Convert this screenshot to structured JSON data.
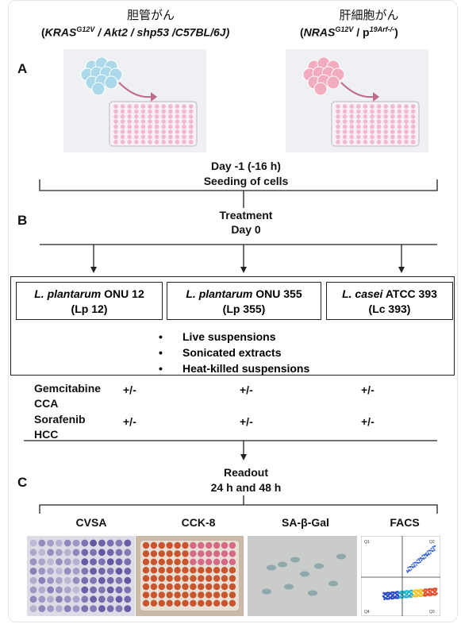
{
  "models": [
    {
      "title": "胆管がん",
      "genotype_pre": "(",
      "genotype_1": "KRAS",
      "genotype_1_sup": "G12V",
      "genotype_rest": " / Akt2 / shp53 /C57BL/6J)"
    },
    {
      "title": "肝細胞がん",
      "genotype_pre": "(",
      "genotype_1": "NRAS",
      "genotype_1_sup": "G12V",
      "genotype_mid": " / p",
      "genotype_2_sup": "19Arf-/-",
      "genotype_post": ")"
    }
  ],
  "section_labels": {
    "a": "A",
    "b": "B",
    "c": "C"
  },
  "seeding": {
    "line1": "Day -1 (-16 h)",
    "line2": "Seeding of cells"
  },
  "treatment": {
    "line1": "Treatment",
    "line2": "Day 0"
  },
  "strains": [
    {
      "name_italic": "L. plantarum",
      "name_rest": " ONU 12",
      "abbr": "(Lp 12)"
    },
    {
      "name_italic": "L. plantarum",
      "name_rest": " ONU 355",
      "abbr": "(Lp 355)"
    },
    {
      "name_italic": "L. casei",
      "name_rest": " ATCC 393",
      "abbr": "(Lc 393)"
    }
  ],
  "bullets": {
    "symbol": "•",
    "items": [
      "Live suspensions",
      "Sonicated extracts",
      "Heat-killed suspensions"
    ]
  },
  "drugs": [
    {
      "line1": "Gemcitabine",
      "line2": "CCA",
      "marks": [
        "+/-",
        "+/-",
        "+/-"
      ]
    },
    {
      "line1": "Sorafenib",
      "line2": "HCC",
      "marks": [
        "+/-",
        "+/-",
        "+/-"
      ]
    }
  ],
  "readout": {
    "line1": "Readout",
    "line2": "24 h and 48 h"
  },
  "assays": [
    "CVSA",
    "CCK-8",
    "SA-β-Gal",
    "FACS"
  ],
  "facs_quadrants": [
    "Q1",
    "Q2",
    "Q3",
    "Q4"
  ],
  "colors": {
    "cca_cells": "#a9d8ea",
    "hcc_cells": "#f4a9bd",
    "well": "#f2b8cf",
    "arrow": "#c06a86",
    "cvsa": "#5a4b9c",
    "cck8": "#c8552e"
  }
}
